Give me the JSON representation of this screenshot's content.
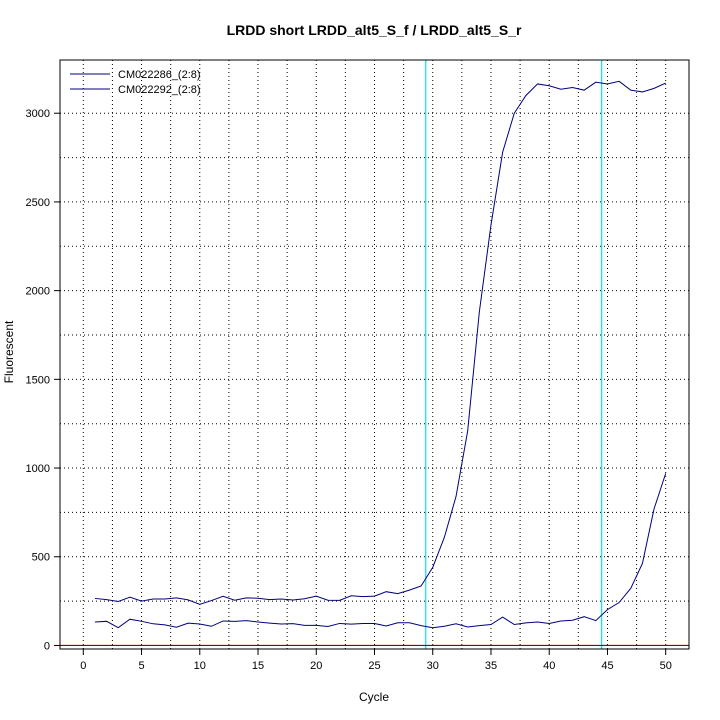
{
  "chart_data": {
    "type": "line",
    "title": "LRDD short LRDD_alt5_S_f / LRDD_alt5_S_r",
    "xlabel": "Cycle",
    "ylabel": "Fluorescent",
    "xlim": [
      -2,
      52
    ],
    "ylim": [
      -20,
      3300
    ],
    "x_ticks": [
      0,
      5,
      10,
      15,
      20,
      25,
      30,
      35,
      40,
      45,
      50
    ],
    "y_ticks": [
      0,
      500,
      1000,
      1500,
      2000,
      2500,
      3000
    ],
    "grid": true,
    "legend_position": "top-left",
    "baseline": 0,
    "threshold_lines_x": [
      29.4,
      44.5
    ],
    "colors": {
      "series": "#000080",
      "threshold": "#00e5ee",
      "baseline": "#8b0000",
      "grid": "#000000"
    },
    "x": [
      1,
      2,
      3,
      4,
      5,
      6,
      7,
      8,
      9,
      10,
      11,
      12,
      13,
      14,
      15,
      16,
      17,
      18,
      19,
      20,
      21,
      22,
      23,
      24,
      25,
      26,
      27,
      28,
      29,
      30,
      31,
      32,
      33,
      34,
      35,
      36,
      37,
      38,
      39,
      40,
      41,
      42,
      43,
      44,
      45,
      46,
      47,
      48,
      49,
      50
    ],
    "series": [
      {
        "name": "CM022286_(2:8)",
        "values": [
          265,
          258,
          248,
          272,
          250,
          262,
          262,
          268,
          257,
          232,
          253,
          277,
          255,
          268,
          266,
          258,
          262,
          256,
          263,
          278,
          255,
          254,
          280,
          275,
          278,
          303,
          292,
          312,
          335,
          440,
          610,
          840,
          1210,
          1880,
          2370,
          2780,
          3000,
          3100,
          3165,
          3155,
          3135,
          3145,
          3130,
          3175,
          3165,
          3180,
          3130,
          3120,
          3140,
          3170
        ]
      },
      {
        "name": "CM022292_(2:8)",
        "values": [
          132,
          136,
          100,
          148,
          136,
          122,
          116,
          103,
          126,
          121,
          108,
          138,
          136,
          140,
          132,
          126,
          121,
          123,
          113,
          113,
          107,
          124,
          120,
          124,
          124,
          110,
          128,
          128,
          112,
          100,
          108,
          122,
          104,
          112,
          118,
          160,
          118,
          127,
          132,
          124,
          138,
          142,
          162,
          140,
          202,
          242,
          322,
          462,
          770,
          970
        ]
      }
    ]
  }
}
